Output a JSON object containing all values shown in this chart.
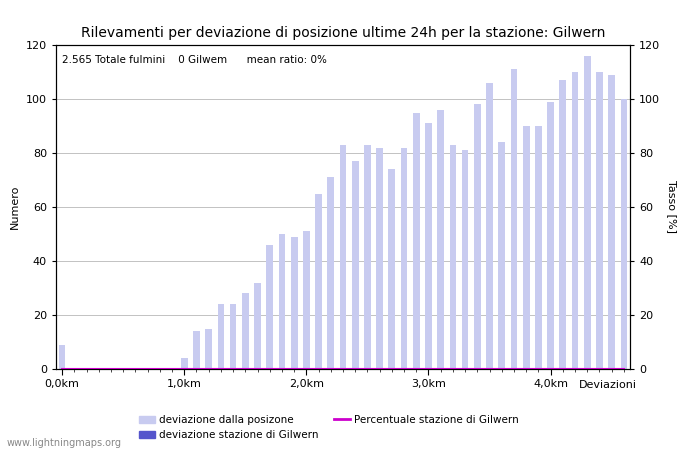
{
  "title": "Rilevamenti per deviazione di posizione ultime 24h per la stazione: Gilwern",
  "subtitle": "2.565 Totale fulmini    0 Gilwem      mean ratio: 0%",
  "xlabel": "Deviazioni",
  "ylabel_left": "Numero",
  "ylabel_right": "Tasso [%]",
  "watermark": "www.lightningmaps.org",
  "ylim": [
    0,
    120
  ],
  "yticks": [
    0,
    20,
    40,
    60,
    80,
    100,
    120
  ],
  "xtick_labels": [
    "0,0km",
    "1,0km",
    "2,0km",
    "3,0km",
    "4,0km"
  ],
  "xtick_positions": [
    0,
    10,
    20,
    30,
    40
  ],
  "bar_color_light": "#c8cbf0",
  "bar_color_dark": "#5555cc",
  "line_color": "#cc00cc",
  "bar_width": 0.55,
  "bar_values": [
    9,
    0,
    0,
    0,
    0,
    0,
    0,
    0,
    0,
    0,
    4,
    14,
    15,
    24,
    24,
    28,
    32,
    46,
    50,
    49,
    51,
    65,
    71,
    83,
    77,
    83,
    82,
    74,
    82,
    95,
    91,
    96,
    83,
    81,
    98,
    106,
    84,
    111,
    90,
    90,
    99,
    107,
    110,
    116,
    110,
    109,
    100
  ],
  "station_values": [
    0,
    0,
    0,
    0,
    0,
    0,
    0,
    0,
    0,
    0,
    0,
    0,
    0,
    0,
    0,
    0,
    0,
    0,
    0,
    0,
    0,
    0,
    0,
    0,
    0,
    0,
    0,
    0,
    0,
    0,
    0,
    0,
    0,
    0,
    0,
    0,
    0,
    0,
    0,
    0,
    0,
    0,
    0,
    0,
    0,
    0,
    0
  ],
  "percentage_values": [
    0,
    0,
    0,
    0,
    0,
    0,
    0,
    0,
    0,
    0,
    0,
    0,
    0,
    0,
    0,
    0,
    0,
    0,
    0,
    0,
    0,
    0,
    0,
    0,
    0,
    0,
    0,
    0,
    0,
    0,
    0,
    0,
    0,
    0,
    0,
    0,
    0,
    0,
    0,
    0,
    0,
    0,
    0,
    0,
    0,
    0,
    0
  ],
  "legend_items": [
    {
      "label": "deviazione dalla posizone",
      "color": "#c8cbf0",
      "type": "bar"
    },
    {
      "label": "deviazione stazione di Gilwern",
      "color": "#5555cc",
      "type": "bar"
    },
    {
      "label": "Percentuale stazione di Gilwern",
      "color": "#cc00cc",
      "type": "line"
    }
  ],
  "background_color": "#ffffff",
  "grid_color": "#aaaaaa",
  "title_fontsize": 10,
  "axis_fontsize": 8,
  "tick_fontsize": 8
}
